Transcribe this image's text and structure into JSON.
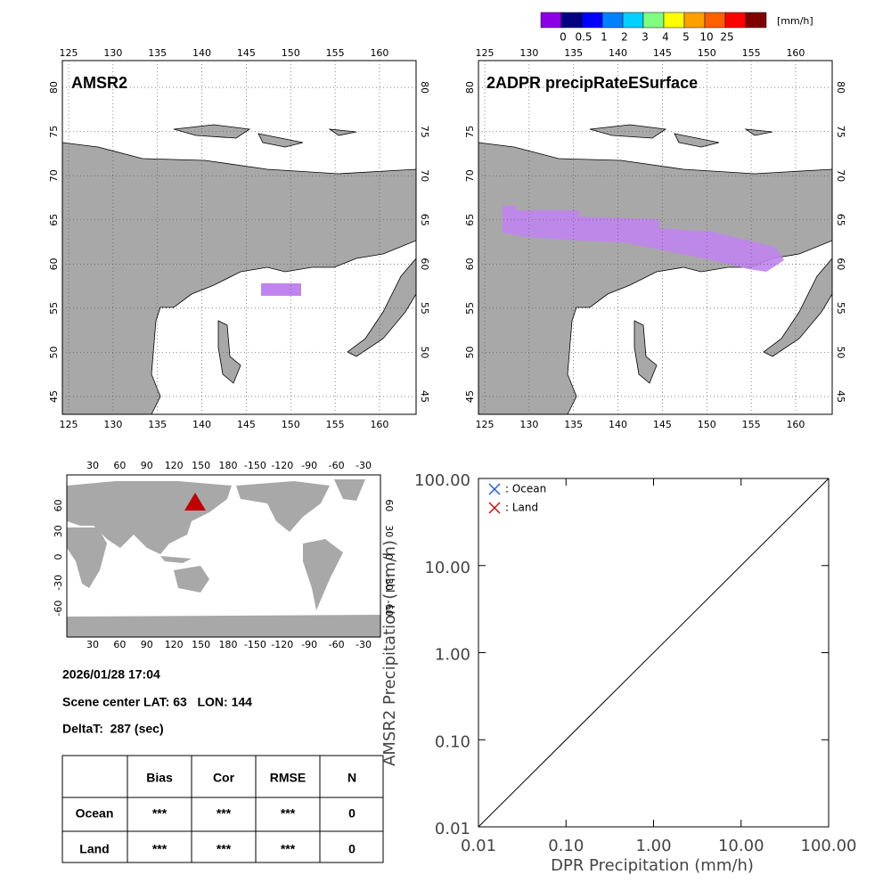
{
  "colorbar": {
    "colors": [
      "#8c00e6",
      "#000080",
      "#0000ff",
      "#0080ff",
      "#00d0ff",
      "#80ff80",
      "#ffff00",
      "#ffa000",
      "#ff6000",
      "#ff0000",
      "#800000"
    ],
    "labels": [
      "0",
      "0.5",
      "1",
      "2",
      "3",
      "4",
      "5",
      "10",
      "25"
    ],
    "unit": "[mm/h]"
  },
  "maps": [
    {
      "title": "AMSR2",
      "lon_ticks": [
        "125",
        "130",
        "135",
        "140",
        "145",
        "150",
        "155",
        "160"
      ],
      "lat_ticks": [
        "45",
        "50",
        "55",
        "60",
        "65",
        "70",
        "75",
        "80"
      ]
    },
    {
      "title": "2ADPR precipRateESurface",
      "lon_ticks": [
        "125",
        "130",
        "135",
        "140",
        "145",
        "150",
        "155",
        "160"
      ],
      "lat_ticks": [
        "45",
        "50",
        "55",
        "60",
        "65",
        "70",
        "75",
        "80"
      ]
    }
  ],
  "world_map": {
    "lon_ticks": [
      "30",
      "60",
      "90",
      "120",
      "150",
      "180",
      "-150",
      "-120",
      "-90",
      "-60",
      "-30"
    ],
    "lat_ticks": [
      "60",
      "30",
      "0",
      "-30",
      "-60"
    ]
  },
  "info": {
    "datetime": "2026/01/28 17:04",
    "scene_center": "Scene center LAT: 63   LON: 144",
    "delta_t": "DeltaT:  287 (sec)"
  },
  "table": {
    "header": [
      "Bias",
      "Cor",
      "RMSE",
      "N"
    ],
    "rows": [
      {
        "label": "Ocean",
        "cells": [
          "***",
          "***",
          "***",
          "0"
        ]
      },
      {
        "label": "Land",
        "cells": [
          "***",
          "***",
          "***",
          "0"
        ]
      }
    ]
  },
  "chart_data": {
    "type": "scatter",
    "x_label": "DPR Precipitation (mm/h)",
    "y_label": "AMSR2 Precipitation (mm/h)",
    "log_scale": true,
    "grid": false,
    "legend": "upper left",
    "xlim": [
      0.01,
      100
    ],
    "ylim": [
      0.01,
      100
    ],
    "xticks": [
      {
        "value": 0.01,
        "label": "0.01"
      },
      {
        "value": 0.1,
        "label": "0.10"
      },
      {
        "value": 1,
        "label": "1.00"
      },
      {
        "value": 10,
        "label": "10.00"
      },
      {
        "value": 100,
        "label": "100.00"
      }
    ],
    "yticks": [
      {
        "value": 0.01,
        "label": "0.01"
      },
      {
        "value": 0.1,
        "label": "0.10"
      },
      {
        "value": 1,
        "label": "1.00"
      },
      {
        "value": 10,
        "label": "10.00"
      },
      {
        "value": 100,
        "label": "100.00"
      }
    ],
    "series": [
      {
        "name": ": Ocean",
        "color": "#1f5fd6",
        "x": [],
        "values": []
      },
      {
        "name": ": Land",
        "color": "#c01010",
        "x": [],
        "values": []
      }
    ]
  }
}
